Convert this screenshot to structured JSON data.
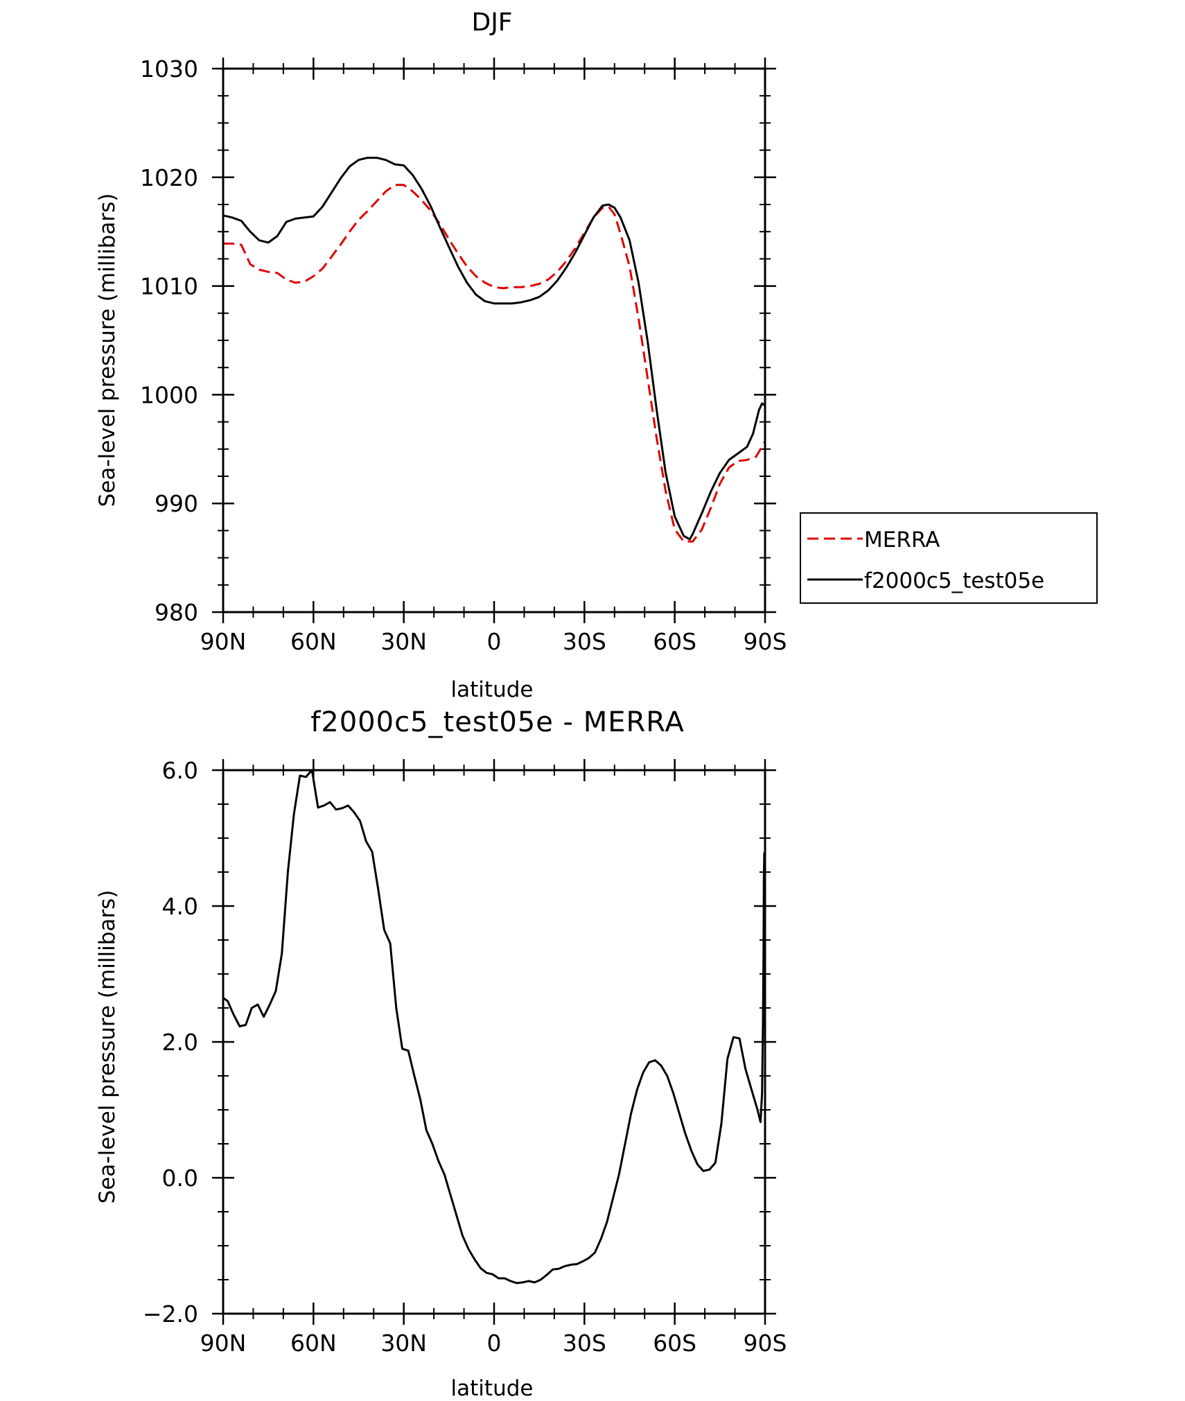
{
  "chart_data": [
    {
      "type": "line",
      "title": "DJF",
      "xlabel": "latitude",
      "ylabel": "Sea-level pressure (millibars)",
      "xlim": [
        90,
        -90
      ],
      "ylim": [
        980,
        1030
      ],
      "xticks": [
        {
          "value": 90,
          "label": "90N"
        },
        {
          "value": 60,
          "label": "60N"
        },
        {
          "value": 30,
          "label": "30N"
        },
        {
          "value": 0,
          "label": "0"
        },
        {
          "value": -30,
          "label": "30S"
        },
        {
          "value": -60,
          "label": "60S"
        },
        {
          "value": -90,
          "label": "90S"
        }
      ],
      "yticks": [
        {
          "value": 980,
          "label": "980"
        },
        {
          "value": 990,
          "label": "990"
        },
        {
          "value": 1000,
          "label": "1000"
        },
        {
          "value": 1010,
          "label": "1010"
        },
        {
          "value": 1020,
          "label": "1020"
        },
        {
          "value": 1030,
          "label": "1030"
        }
      ],
      "legend_position": "outside-right",
      "series": [
        {
          "name": "MERRA",
          "color": "#e00000",
          "dash": true,
          "points": [
            [
              90,
              1013.9
            ],
            [
              87,
              1013.9
            ],
            [
              84,
              1013.8
            ],
            [
              81,
              1012.0
            ],
            [
              78,
              1011.5
            ],
            [
              75,
              1011.3
            ],
            [
              72,
              1011.2
            ],
            [
              69,
              1010.6
            ],
            [
              66,
              1010.3
            ],
            [
              63,
              1010.4
            ],
            [
              60,
              1010.9
            ],
            [
              57,
              1011.6
            ],
            [
              54,
              1012.7
            ],
            [
              51,
              1013.8
            ],
            [
              48,
              1015.0
            ],
            [
              45,
              1016.1
            ],
            [
              42,
              1016.9
            ],
            [
              39,
              1017.8
            ],
            [
              36,
              1018.7
            ],
            [
              33,
              1019.3
            ],
            [
              30,
              1019.3
            ],
            [
              27,
              1018.7
            ],
            [
              24,
              1017.9
            ],
            [
              21,
              1016.9
            ],
            [
              18,
              1015.7
            ],
            [
              15,
              1014.3
            ],
            [
              12,
              1013.0
            ],
            [
              9,
              1011.8
            ],
            [
              6,
              1010.9
            ],
            [
              3,
              1010.3
            ],
            [
              0,
              1009.9
            ],
            [
              -3,
              1009.8
            ],
            [
              -6,
              1009.9
            ],
            [
              -9,
              1009.9
            ],
            [
              -12,
              1010.0
            ],
            [
              -15,
              1010.2
            ],
            [
              -18,
              1010.6
            ],
            [
              -21,
              1011.3
            ],
            [
              -24,
              1012.3
            ],
            [
              -27,
              1013.5
            ],
            [
              -30,
              1014.9
            ],
            [
              -33,
              1016.3
            ],
            [
              -36,
              1017.2
            ],
            [
              -38,
              1017.3
            ],
            [
              -40,
              1016.6
            ],
            [
              -42,
              1014.8
            ],
            [
              -45,
              1011.8
            ],
            [
              -48,
              1007.0
            ],
            [
              -51,
              1001.5
            ],
            [
              -54,
              996.0
            ],
            [
              -57,
              991.1
            ],
            [
              -60,
              987.6
            ],
            [
              -63,
              986.5
            ],
            [
              -66,
              986.5
            ],
            [
              -69,
              987.6
            ],
            [
              -72,
              989.6
            ],
            [
              -75,
              991.8
            ],
            [
              -78,
              993.3
            ],
            [
              -81,
              993.9
            ],
            [
              -84,
              994.0
            ],
            [
              -87,
              994.3
            ],
            [
              -90,
              995.7
            ]
          ]
        },
        {
          "name": "f2000c5_test05e",
          "color": "#000000",
          "dash": false,
          "points": [
            [
              90,
              1016.5
            ],
            [
              87,
              1016.3
            ],
            [
              84,
              1016.0
            ],
            [
              81,
              1015.0
            ],
            [
              78,
              1014.2
            ],
            [
              75,
              1014.0
            ],
            [
              72,
              1014.6
            ],
            [
              69,
              1015.9
            ],
            [
              66,
              1016.2
            ],
            [
              63,
              1016.3
            ],
            [
              60,
              1016.4
            ],
            [
              57,
              1017.3
            ],
            [
              54,
              1018.6
            ],
            [
              51,
              1019.9
            ],
            [
              48,
              1021.0
            ],
            [
              45,
              1021.6
            ],
            [
              42,
              1021.8
            ],
            [
              39,
              1021.8
            ],
            [
              36,
              1021.6
            ],
            [
              33,
              1021.2
            ],
            [
              30,
              1021.1
            ],
            [
              27,
              1020.2
            ],
            [
              24,
              1018.9
            ],
            [
              21,
              1017.3
            ],
            [
              18,
              1015.4
            ],
            [
              15,
              1013.6
            ],
            [
              12,
              1011.8
            ],
            [
              9,
              1010.3
            ],
            [
              6,
              1009.2
            ],
            [
              3,
              1008.6
            ],
            [
              0,
              1008.4
            ],
            [
              -3,
              1008.4
            ],
            [
              -6,
              1008.4
            ],
            [
              -9,
              1008.5
            ],
            [
              -12,
              1008.7
            ],
            [
              -15,
              1009.0
            ],
            [
              -18,
              1009.6
            ],
            [
              -21,
              1010.5
            ],
            [
              -24,
              1011.7
            ],
            [
              -27,
              1013.1
            ],
            [
              -30,
              1014.7
            ],
            [
              -33,
              1016.3
            ],
            [
              -36,
              1017.4
            ],
            [
              -38,
              1017.5
            ],
            [
              -40,
              1017.2
            ],
            [
              -42,
              1016.3
            ],
            [
              -45,
              1014.2
            ],
            [
              -48,
              1010.3
            ],
            [
              -51,
              1004.9
            ],
            [
              -54,
              998.6
            ],
            [
              -57,
              992.8
            ],
            [
              -60,
              988.8
            ],
            [
              -63,
              987.0
            ],
            [
              -65,
              986.7
            ],
            [
              -66,
              987.2
            ],
            [
              -69,
              989.1
            ],
            [
              -72,
              991.1
            ],
            [
              -75,
              992.8
            ],
            [
              -78,
              994.0
            ],
            [
              -81,
              994.6
            ],
            [
              -84,
              995.2
            ],
            [
              -86,
              996.4
            ],
            [
              -88,
              998.6
            ],
            [
              -89,
              999.2
            ],
            [
              -90,
              999.0
            ]
          ]
        }
      ]
    },
    {
      "type": "line",
      "title": "f2000c5_test05e - MERRA",
      "xlabel": "latitude",
      "ylabel": "Sea-level pressure (millibars)",
      "xlim": [
        90,
        -90
      ],
      "ylim": [
        -2.0,
        6.0
      ],
      "xticks": [
        {
          "value": 90,
          "label": "90N"
        },
        {
          "value": 60,
          "label": "60N"
        },
        {
          "value": 30,
          "label": "30N"
        },
        {
          "value": 0,
          "label": "0"
        },
        {
          "value": -30,
          "label": "30S"
        },
        {
          "value": -60,
          "label": "60S"
        },
        {
          "value": -90,
          "label": "90S"
        }
      ],
      "yticks": [
        {
          "value": -2.0,
          "label": "-2.0"
        },
        {
          "value": 0.0,
          "label": "0.0"
        },
        {
          "value": 2.0,
          "label": "2.0"
        },
        {
          "value": 4.0,
          "label": "4.0"
        },
        {
          "value": 6.0,
          "label": "6.0"
        }
      ],
      "series": [
        {
          "name": "",
          "color": "#000000",
          "dash": false,
          "points": [
            [
              90,
              2.65
            ],
            [
              88.5,
              2.6
            ],
            [
              86.5,
              2.4
            ],
            [
              84.5,
              2.23
            ],
            [
              82.5,
              2.25
            ],
            [
              80.5,
              2.5
            ],
            [
              78.5,
              2.55
            ],
            [
              76.5,
              2.37
            ],
            [
              74.5,
              2.55
            ],
            [
              72.5,
              2.75
            ],
            [
              70.5,
              3.3
            ],
            [
              68.5,
              4.5
            ],
            [
              66.5,
              5.35
            ],
            [
              64.5,
              5.92
            ],
            [
              62.5,
              5.9
            ],
            [
              60.5,
              6.0
            ],
            [
              58.5,
              5.45
            ],
            [
              56.5,
              5.48
            ],
            [
              54.5,
              5.53
            ],
            [
              52.5,
              5.42
            ],
            [
              50.5,
              5.44
            ],
            [
              48.5,
              5.48
            ],
            [
              46.5,
              5.38
            ],
            [
              44.5,
              5.25
            ],
            [
              42.5,
              4.95
            ],
            [
              40.5,
              4.8
            ],
            [
              38.5,
              4.25
            ],
            [
              36.5,
              3.65
            ],
            [
              34.5,
              3.45
            ],
            [
              32.5,
              2.5
            ],
            [
              30.5,
              1.9
            ],
            [
              28.5,
              1.87
            ],
            [
              26.5,
              1.5
            ],
            [
              24.5,
              1.15
            ],
            [
              22.5,
              0.7
            ],
            [
              20.5,
              0.5
            ],
            [
              18.5,
              0.25
            ],
            [
              16.5,
              0.05
            ],
            [
              14.5,
              -0.25
            ],
            [
              12.5,
              -0.55
            ],
            [
              10.5,
              -0.85
            ],
            [
              8.5,
              -1.05
            ],
            [
              6.5,
              -1.2
            ],
            [
              4.5,
              -1.33
            ],
            [
              2.5,
              -1.4
            ],
            [
              0.5,
              -1.42
            ],
            [
              -1.5,
              -1.48
            ],
            [
              -3.5,
              -1.48
            ],
            [
              -5.5,
              -1.52
            ],
            [
              -7.5,
              -1.55
            ],
            [
              -9.5,
              -1.54
            ],
            [
              -11.5,
              -1.52
            ],
            [
              -13.5,
              -1.54
            ],
            [
              -15.5,
              -1.5
            ],
            [
              -17.5,
              -1.43
            ],
            [
              -19.5,
              -1.35
            ],
            [
              -21.5,
              -1.34
            ],
            [
              -23.5,
              -1.3
            ],
            [
              -25.5,
              -1.28
            ],
            [
              -27.5,
              -1.27
            ],
            [
              -29.5,
              -1.23
            ],
            [
              -31.5,
              -1.18
            ],
            [
              -33.5,
              -1.1
            ],
            [
              -35.5,
              -0.9
            ],
            [
              -37.5,
              -0.65
            ],
            [
              -39.5,
              -0.3
            ],
            [
              -41.5,
              0.05
            ],
            [
              -43.5,
              0.5
            ],
            [
              -45.5,
              0.95
            ],
            [
              -47.5,
              1.3
            ],
            [
              -49.5,
              1.55
            ],
            [
              -51.5,
              1.7
            ],
            [
              -53.5,
              1.73
            ],
            [
              -55.5,
              1.65
            ],
            [
              -57.5,
              1.5
            ],
            [
              -59.5,
              1.25
            ],
            [
              -61.5,
              0.95
            ],
            [
              -63.5,
              0.65
            ],
            [
              -65.5,
              0.4
            ],
            [
              -67.5,
              0.2
            ],
            [
              -69.5,
              0.1
            ],
            [
              -71.5,
              0.12
            ],
            [
              -73.5,
              0.22
            ],
            [
              -75.5,
              0.8
            ],
            [
              -77.5,
              1.75
            ],
            [
              -79.5,
              2.07
            ],
            [
              -81.5,
              2.05
            ],
            [
              -83.5,
              1.6
            ],
            [
              -85.5,
              1.3
            ],
            [
              -87.5,
              1.0
            ],
            [
              -88.5,
              0.82
            ],
            [
              -89.0,
              1.25
            ],
            [
              -89.3,
              2.3
            ],
            [
              -89.5,
              3.3
            ],
            [
              -89.6,
              4.4
            ],
            [
              -89.75,
              4.78
            ],
            [
              -89.9,
              4.3
            ],
            [
              -90,
              3.9
            ]
          ]
        }
      ]
    }
  ]
}
